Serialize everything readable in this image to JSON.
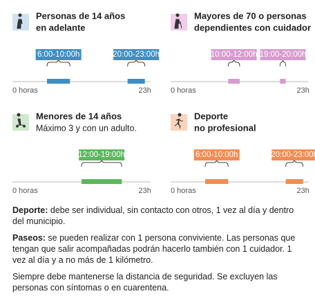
{
  "xlim": [
    0,
    24
  ],
  "xticks": [
    {
      "value": 0,
      "label": "0 horas"
    },
    {
      "value": 23,
      "label": "23h"
    }
  ],
  "panels": [
    {
      "title": [
        "Personas de 14 años",
        "en adelante"
      ],
      "color": "#3d8fc6",
      "icon_bg": "#cfe2f0",
      "ranges": [
        {
          "start": 6,
          "end": 10,
          "label": "6:00-10:00h"
        },
        {
          "start": 20,
          "end": 23,
          "label": "20:00-23:00h"
        }
      ]
    },
    {
      "title": [
        "Mayores de 70 o personas",
        "dependientes con cuidador"
      ],
      "color": "#d79bd0",
      "icon_bg": "#f1cdea",
      "ranges": [
        {
          "start": 10,
          "end": 12,
          "label": "10:00-12:00h"
        },
        {
          "start": 19,
          "end": 20,
          "label": "19:00-20:00h"
        }
      ]
    },
    {
      "title": [
        "Menores de 14 años"
      ],
      "subtitle": "Máximo 3 y con un adulto.",
      "color": "#5cb85c",
      "icon_bg": "#cfe8cf",
      "ranges": [
        {
          "start": 12,
          "end": 19,
          "label": "12:00-19:00h"
        }
      ]
    },
    {
      "title": [
        "Deporte",
        "no profesional"
      ],
      "color": "#f28c52",
      "icon_bg": "#fbd4bd",
      "ranges": [
        {
          "start": 6,
          "end": 10,
          "label": "6:00-10:00h"
        },
        {
          "start": 20,
          "end": 23,
          "label": "20:00-23:00h"
        }
      ]
    }
  ],
  "notes": [
    {
      "lead": "Deporte:",
      "text": " debe ser individual, sin contacto con otros, 1 vez al día y dentro del municipio."
    },
    {
      "lead": "Paseos:",
      "text": " se pueden realizar con 1 persona conviviente. Las personas que tengan que salir acompañadas podrán hacerlo también con 1 cuidador. 1 vez al día y a no más de 1 kilómetro."
    },
    {
      "text": "Siempre debe mantenerse la distancia de seguridad. Se excluyen las personas con síntomas o en cuarentena."
    }
  ]
}
